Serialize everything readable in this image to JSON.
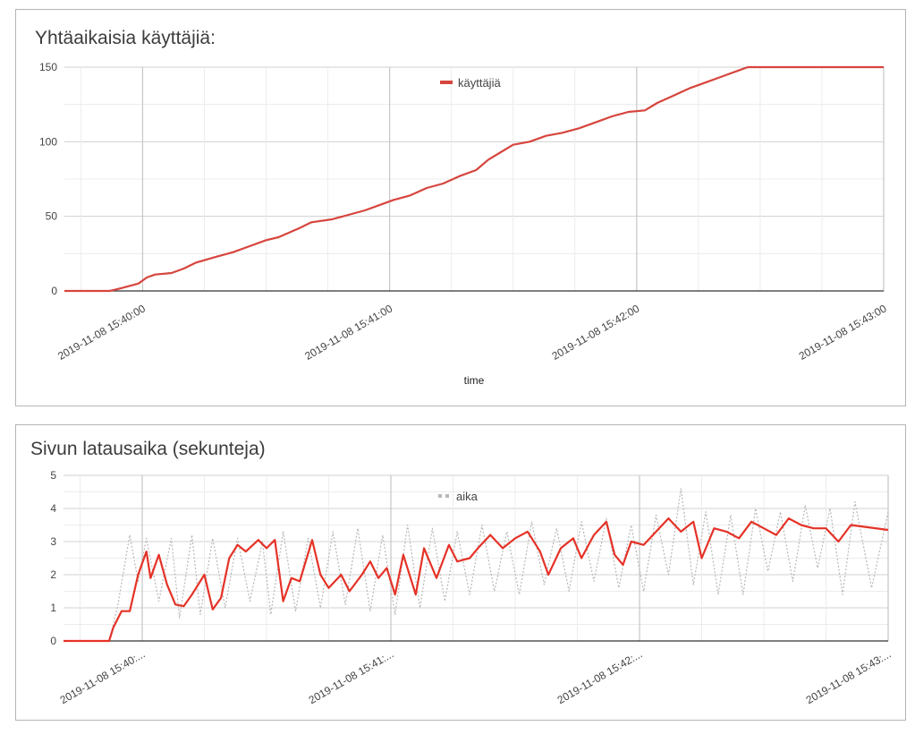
{
  "charts": [
    {
      "title": "Yhtäaikaisia käyttäjiä:",
      "xlabel": "time",
      "color": "#d6453d"
    },
    {
      "title": "Sivun latausaika (sekunteja)",
      "color": "#e53227",
      "secondary_color": "#b8b8b8"
    }
  ],
  "chart_data": [
    {
      "type": "line",
      "title": "Yhtäaikaisia käyttäjiä:",
      "xlabel": "time",
      "ylabel": "",
      "x_range": [
        "2019-11-08 15:39:41",
        "2019-11-08 15:43:00"
      ],
      "ylim": [
        0,
        150
      ],
      "y_ticks": [
        0,
        50,
        100,
        150
      ],
      "x_tick_labels": [
        "2019-11-08 15:40:00",
        "2019-11-08 15:41:00",
        "2019-11-08 15:42:00",
        "2019-11-08 15:43:00"
      ],
      "legend_position": "top-center",
      "grid": true,
      "series": [
        {
          "name": "käyttäjiä",
          "color": "#d6453d",
          "points": [
            [
              "2019-11-08 15:39:41",
              0
            ],
            [
              "2019-11-08 15:39:52",
              0
            ],
            [
              "2019-11-08 15:39:55",
              2
            ],
            [
              "2019-11-08 15:39:59",
              5
            ],
            [
              "2019-11-08 15:40:01",
              9
            ],
            [
              "2019-11-08 15:40:03",
              11
            ],
            [
              "2019-11-08 15:40:07",
              12
            ],
            [
              "2019-11-08 15:40:10",
              15
            ],
            [
              "2019-11-08 15:40:13",
              19
            ],
            [
              "2019-11-08 15:40:18",
              23
            ],
            [
              "2019-11-08 15:40:22",
              26
            ],
            [
              "2019-11-08 15:40:26",
              30
            ],
            [
              "2019-11-08 15:40:30",
              34
            ],
            [
              "2019-11-08 15:40:33",
              36
            ],
            [
              "2019-11-08 15:40:38",
              42
            ],
            [
              "2019-11-08 15:40:41",
              46
            ],
            [
              "2019-11-08 15:40:46",
              48
            ],
            [
              "2019-11-08 15:40:50",
              51
            ],
            [
              "2019-11-08 15:40:54",
              54
            ],
            [
              "2019-11-08 15:40:58",
              58
            ],
            [
              "2019-11-08 15:41:01",
              61
            ],
            [
              "2019-11-08 15:41:05",
              64
            ],
            [
              "2019-11-08 15:41:09",
              69
            ],
            [
              "2019-11-08 15:41:13",
              72
            ],
            [
              "2019-11-08 15:41:17",
              77
            ],
            [
              "2019-11-08 15:41:21",
              81
            ],
            [
              "2019-11-08 15:41:24",
              88
            ],
            [
              "2019-11-08 15:41:27",
              93
            ],
            [
              "2019-11-08 15:41:30",
              98
            ],
            [
              "2019-11-08 15:41:34",
              100
            ],
            [
              "2019-11-08 15:41:38",
              104
            ],
            [
              "2019-11-08 15:41:42",
              106
            ],
            [
              "2019-11-08 15:41:46",
              109
            ],
            [
              "2019-11-08 15:41:50",
              113
            ],
            [
              "2019-11-08 15:41:54",
              117
            ],
            [
              "2019-11-08 15:41:58",
              120
            ],
            [
              "2019-11-08 15:42:02",
              121
            ],
            [
              "2019-11-08 15:42:05",
              126
            ],
            [
              "2019-11-08 15:42:09",
              131
            ],
            [
              "2019-11-08 15:42:13",
              136
            ],
            [
              "2019-11-08 15:42:17",
              140
            ],
            [
              "2019-11-08 15:42:21",
              144
            ],
            [
              "2019-11-08 15:42:25",
              148
            ],
            [
              "2019-11-08 15:42:27",
              150
            ],
            [
              "2019-11-08 15:43:00",
              150
            ]
          ]
        }
      ]
    },
    {
      "type": "line",
      "title": "Sivun latausaika (sekunteja)",
      "xlabel": "",
      "ylabel": "",
      "x_range": [
        "2019-11-08 15:39:41",
        "2019-11-08 15:43:00"
      ],
      "ylim": [
        0,
        5
      ],
      "y_ticks": [
        0,
        1,
        2,
        3,
        4,
        5
      ],
      "x_tick_labels": [
        "2019-11-08 15:40:...",
        "2019-11-08 15:41:...",
        "2019-11-08 15:42:...",
        "2019-11-08 15:43:..."
      ],
      "legend_position": "top-center",
      "grid": true,
      "series": [
        {
          "name": "",
          "color": "#e53227",
          "style": "solid",
          "points": [
            [
              "2019-11-08 15:39:41",
              0
            ],
            [
              "2019-11-08 15:39:52",
              0
            ],
            [
              "2019-11-08 15:39:53",
              0.4
            ],
            [
              "2019-11-08 15:39:55",
              0.9
            ],
            [
              "2019-11-08 15:39:57",
              0.9
            ],
            [
              "2019-11-08 15:39:59",
              2.0
            ],
            [
              "2019-11-08 15:40:01",
              2.7
            ],
            [
              "2019-11-08 15:40:02",
              1.9
            ],
            [
              "2019-11-08 15:40:04",
              2.6
            ],
            [
              "2019-11-08 15:40:06",
              1.7
            ],
            [
              "2019-11-08 15:40:08",
              1.1
            ],
            [
              "2019-11-08 15:40:10",
              1.05
            ],
            [
              "2019-11-08 15:40:12",
              1.4
            ],
            [
              "2019-11-08 15:40:15",
              2.0
            ],
            [
              "2019-11-08 15:40:17",
              0.95
            ],
            [
              "2019-11-08 15:40:19",
              1.3
            ],
            [
              "2019-11-08 15:40:21",
              2.5
            ],
            [
              "2019-11-08 15:40:23",
              2.9
            ],
            [
              "2019-11-08 15:40:25",
              2.7
            ],
            [
              "2019-11-08 15:40:28",
              3.05
            ],
            [
              "2019-11-08 15:40:30",
              2.8
            ],
            [
              "2019-11-08 15:40:32",
              3.05
            ],
            [
              "2019-11-08 15:40:34",
              1.2
            ],
            [
              "2019-11-08 15:40:36",
              1.9
            ],
            [
              "2019-11-08 15:40:38",
              1.8
            ],
            [
              "2019-11-08 15:40:41",
              3.05
            ],
            [
              "2019-11-08 15:40:43",
              2.0
            ],
            [
              "2019-11-08 15:40:45",
              1.6
            ],
            [
              "2019-11-08 15:40:48",
              2.0
            ],
            [
              "2019-11-08 15:40:50",
              1.5
            ],
            [
              "2019-11-08 15:40:53",
              2.0
            ],
            [
              "2019-11-08 15:40:55",
              2.4
            ],
            [
              "2019-11-08 15:40:57",
              1.9
            ],
            [
              "2019-11-08 15:40:59",
              2.2
            ],
            [
              "2019-11-08 15:41:01",
              1.4
            ],
            [
              "2019-11-08 15:41:03",
              2.6
            ],
            [
              "2019-11-08 15:41:06",
              1.4
            ],
            [
              "2019-11-08 15:41:08",
              2.8
            ],
            [
              "2019-11-08 15:41:11",
              1.9
            ],
            [
              "2019-11-08 15:41:14",
              2.9
            ],
            [
              "2019-11-08 15:41:16",
              2.4
            ],
            [
              "2019-11-08 15:41:19",
              2.5
            ],
            [
              "2019-11-08 15:41:21",
              2.8
            ],
            [
              "2019-11-08 15:41:24",
              3.2
            ],
            [
              "2019-11-08 15:41:27",
              2.8
            ],
            [
              "2019-11-08 15:41:30",
              3.1
            ],
            [
              "2019-11-08 15:41:33",
              3.3
            ],
            [
              "2019-11-08 15:41:36",
              2.7
            ],
            [
              "2019-11-08 15:41:38",
              2.0
            ],
            [
              "2019-11-08 15:41:41",
              2.8
            ],
            [
              "2019-11-08 15:41:44",
              3.1
            ],
            [
              "2019-11-08 15:41:46",
              2.5
            ],
            [
              "2019-11-08 15:41:49",
              3.2
            ],
            [
              "2019-11-08 15:41:52",
              3.6
            ],
            [
              "2019-11-08 15:41:54",
              2.6
            ],
            [
              "2019-11-08 15:41:56",
              2.3
            ],
            [
              "2019-11-08 15:41:58",
              3.0
            ],
            [
              "2019-11-08 15:42:01",
              2.9
            ],
            [
              "2019-11-08 15:42:04",
              3.3
            ],
            [
              "2019-11-08 15:42:07",
              3.7
            ],
            [
              "2019-11-08 15:42:10",
              3.3
            ],
            [
              "2019-11-08 15:42:13",
              3.6
            ],
            [
              "2019-11-08 15:42:15",
              2.5
            ],
            [
              "2019-11-08 15:42:18",
              3.4
            ],
            [
              "2019-11-08 15:42:21",
              3.3
            ],
            [
              "2019-11-08 15:42:24",
              3.1
            ],
            [
              "2019-11-08 15:42:27",
              3.6
            ],
            [
              "2019-11-08 15:42:30",
              3.4
            ],
            [
              "2019-11-08 15:42:33",
              3.2
            ],
            [
              "2019-11-08 15:42:36",
              3.7
            ],
            [
              "2019-11-08 15:42:39",
              3.5
            ],
            [
              "2019-11-08 15:42:42",
              3.4
            ],
            [
              "2019-11-08 15:42:45",
              3.4
            ],
            [
              "2019-11-08 15:42:48",
              3.0
            ],
            [
              "2019-11-08 15:42:51",
              3.5
            ],
            [
              "2019-11-08 15:43:00",
              3.35
            ]
          ]
        },
        {
          "name": "aika",
          "color": "#b8b8b8",
          "style": "dotted",
          "points": [
            [
              "2019-11-08 15:39:41",
              0
            ],
            [
              "2019-11-08 15:39:52",
              0
            ],
            [
              "2019-11-08 15:39:54",
              1.0
            ],
            [
              "2019-11-08 15:39:57",
              3.2
            ],
            [
              "2019-11-08 15:39:59",
              1.8
            ],
            [
              "2019-11-08 15:40:01",
              3.1
            ],
            [
              "2019-11-08 15:40:04",
              1.2
            ],
            [
              "2019-11-08 15:40:07",
              3.1
            ],
            [
              "2019-11-08 15:40:09",
              0.7
            ],
            [
              "2019-11-08 15:40:12",
              3.2
            ],
            [
              "2019-11-08 15:40:14",
              0.8
            ],
            [
              "2019-11-08 15:40:17",
              3.1
            ],
            [
              "2019-11-08 15:40:20",
              1.0
            ],
            [
              "2019-11-08 15:40:23",
              3.1
            ],
            [
              "2019-11-08 15:40:26",
              1.2
            ],
            [
              "2019-11-08 15:40:29",
              3.0
            ],
            [
              "2019-11-08 15:40:31",
              0.8
            ],
            [
              "2019-11-08 15:40:34",
              3.3
            ],
            [
              "2019-11-08 15:40:37",
              0.9
            ],
            [
              "2019-11-08 15:40:40",
              3.1
            ],
            [
              "2019-11-08 15:40:43",
              1.0
            ],
            [
              "2019-11-08 15:40:46",
              3.3
            ],
            [
              "2019-11-08 15:40:49",
              1.1
            ],
            [
              "2019-11-08 15:40:52",
              3.4
            ],
            [
              "2019-11-08 15:40:55",
              0.9
            ],
            [
              "2019-11-08 15:40:58",
              3.2
            ],
            [
              "2019-11-08 15:41:01",
              0.8
            ],
            [
              "2019-11-08 15:41:04",
              3.5
            ],
            [
              "2019-11-08 15:41:07",
              1.0
            ],
            [
              "2019-11-08 15:41:10",
              3.4
            ],
            [
              "2019-11-08 15:41:13",
              1.2
            ],
            [
              "2019-11-08 15:41:16",
              3.3
            ],
            [
              "2019-11-08 15:41:19",
              1.4
            ],
            [
              "2019-11-08 15:41:22",
              3.5
            ],
            [
              "2019-11-08 15:41:25",
              1.5
            ],
            [
              "2019-11-08 15:41:28",
              3.3
            ],
            [
              "2019-11-08 15:41:31",
              1.4
            ],
            [
              "2019-11-08 15:41:34",
              3.6
            ],
            [
              "2019-11-08 15:41:37",
              1.7
            ],
            [
              "2019-11-08 15:41:40",
              3.4
            ],
            [
              "2019-11-08 15:41:43",
              1.5
            ],
            [
              "2019-11-08 15:41:46",
              3.6
            ],
            [
              "2019-11-08 15:41:49",
              1.8
            ],
            [
              "2019-11-08 15:41:52",
              3.7
            ],
            [
              "2019-11-08 15:41:55",
              1.6
            ],
            [
              "2019-11-08 15:41:58",
              3.5
            ],
            [
              "2019-11-08 15:42:01",
              1.5
            ],
            [
              "2019-11-08 15:42:04",
              3.8
            ],
            [
              "2019-11-08 15:42:07",
              2.0
            ],
            [
              "2019-11-08 15:42:10",
              4.6
            ],
            [
              "2019-11-08 15:42:13",
              1.7
            ],
            [
              "2019-11-08 15:42:16",
              3.9
            ],
            [
              "2019-11-08 15:42:19",
              1.4
            ],
            [
              "2019-11-08 15:42:22",
              3.8
            ],
            [
              "2019-11-08 15:42:25",
              1.4
            ],
            [
              "2019-11-08 15:42:28",
              4.0
            ],
            [
              "2019-11-08 15:42:31",
              2.1
            ],
            [
              "2019-11-08 15:42:34",
              3.9
            ],
            [
              "2019-11-08 15:42:37",
              1.8
            ],
            [
              "2019-11-08 15:42:40",
              4.1
            ],
            [
              "2019-11-08 15:42:43",
              2.2
            ],
            [
              "2019-11-08 15:42:46",
              4.0
            ],
            [
              "2019-11-08 15:42:49",
              1.4
            ],
            [
              "2019-11-08 15:42:52",
              4.2
            ],
            [
              "2019-11-08 15:42:56",
              1.6
            ],
            [
              "2019-11-08 15:43:00",
              3.9
            ]
          ]
        }
      ]
    }
  ]
}
